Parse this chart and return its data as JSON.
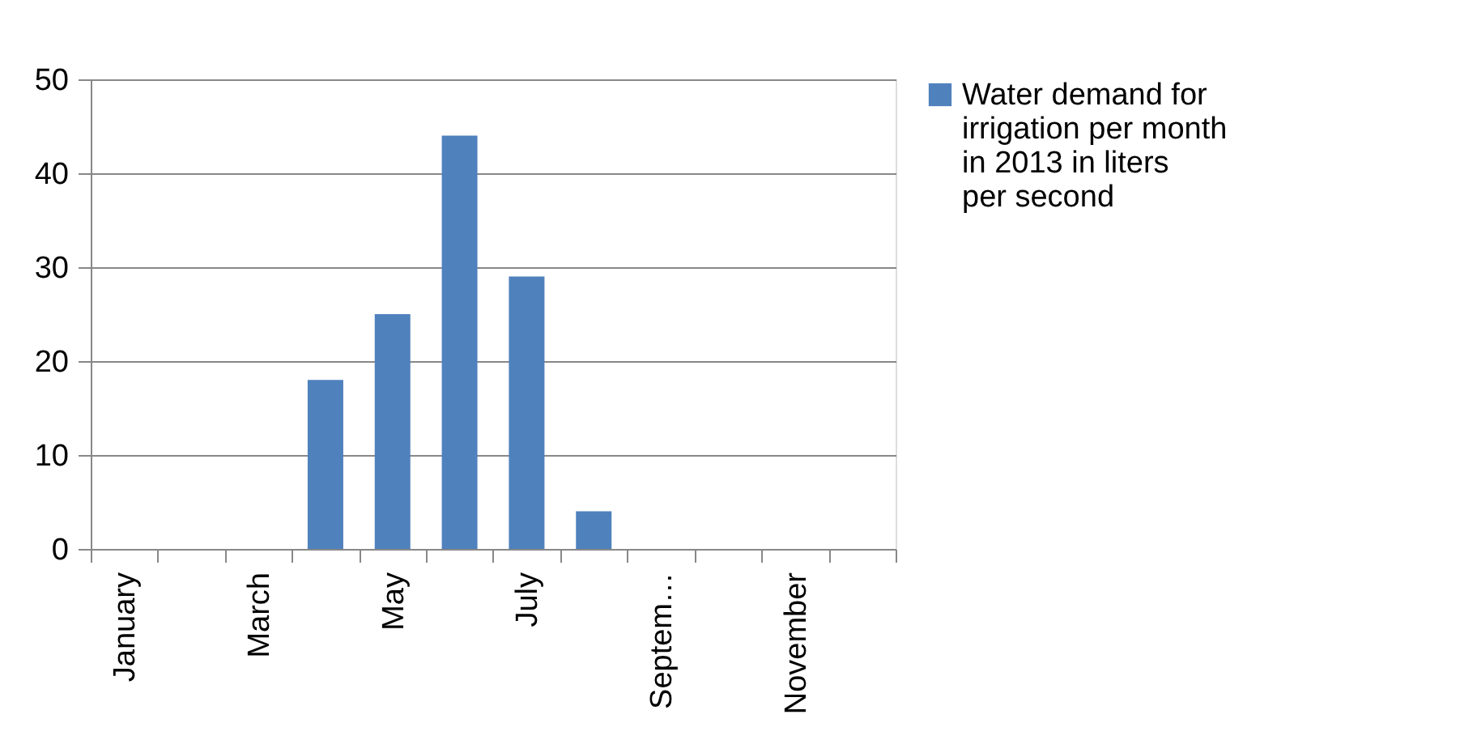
{
  "chart_data": {
    "type": "bar",
    "categories": [
      "January",
      null,
      "March",
      null,
      "May",
      null,
      "July",
      null,
      "Septem…",
      null,
      "November",
      null
    ],
    "series": [
      {
        "name": "Water demand for irrigation per month in 2013 in liters per second",
        "color": "#4f81bd",
        "values": [
          0,
          0,
          0,
          18,
          25,
          44,
          29,
          4,
          0,
          0,
          0,
          0
        ]
      }
    ],
    "ylim": [
      0,
      50
    ],
    "yticks": [
      0,
      10,
      20,
      30,
      40,
      50
    ],
    "grid": "y",
    "legend": "right"
  }
}
